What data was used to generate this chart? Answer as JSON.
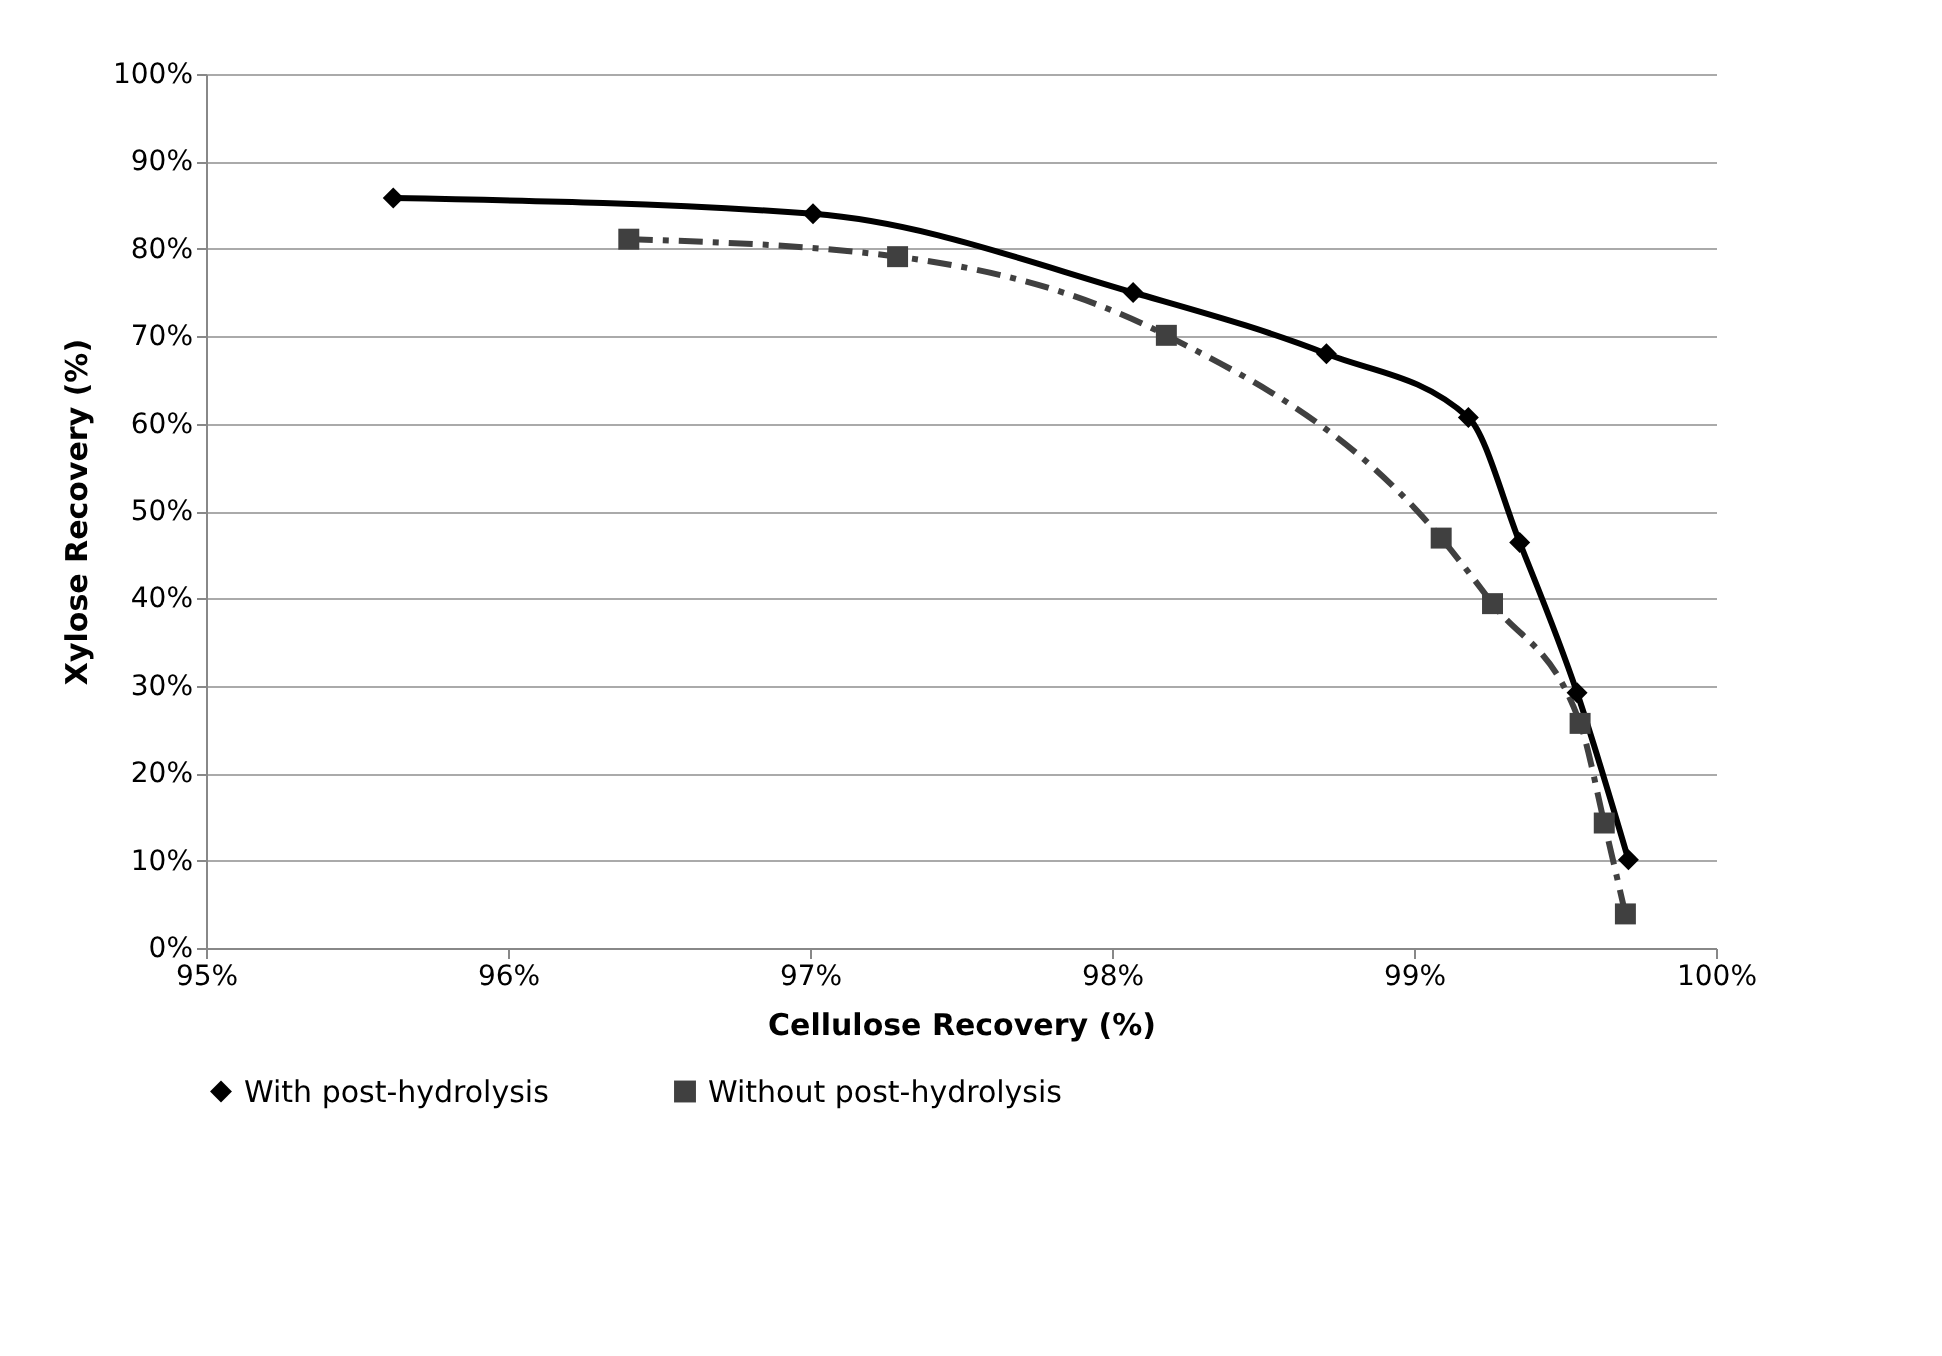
{
  "chart_data": {
    "type": "line",
    "xlabel": "Cellulose Recovery (%)",
    "ylabel": "Xylose Recovery (%)",
    "series": [
      {
        "name": "With post-hydrolysis",
        "color": "#000000",
        "marker": "diamond",
        "line_style": "solid",
        "x": [
          95.62,
          97.01,
          98.07,
          98.71,
          99.18,
          99.35,
          99.54,
          99.71
        ],
        "values": [
          85.8,
          84.0,
          75.0,
          68.0,
          60.7,
          46.4,
          29.2,
          10.1
        ]
      },
      {
        "name": "Without post-hydrolysis",
        "color": "#404040",
        "marker": "square",
        "line_style": "dashdot",
        "x": [
          96.4,
          97.29,
          98.18,
          99.09,
          99.26,
          99.55,
          99.63,
          99.7
        ],
        "values": [
          81.1,
          79.1,
          70.1,
          46.9,
          39.4,
          25.7,
          14.3,
          3.9
        ]
      }
    ],
    "xlim": [
      95,
      100
    ],
    "xticks": [
      {
        "value": 95,
        "label": "95%"
      },
      {
        "value": 96,
        "label": "96%"
      },
      {
        "value": 97,
        "label": "97%"
      },
      {
        "value": 98,
        "label": "98%"
      },
      {
        "value": 99,
        "label": "99%"
      },
      {
        "value": 100,
        "label": "100%"
      }
    ],
    "ylim": [
      0,
      100
    ],
    "yticks": [
      {
        "value": 0,
        "label": "0%"
      },
      {
        "value": 10,
        "label": "10%"
      },
      {
        "value": 20,
        "label": "20%"
      },
      {
        "value": 30,
        "label": "30%"
      },
      {
        "value": 40,
        "label": "40%"
      },
      {
        "value": 50,
        "label": "50%"
      },
      {
        "value": 60,
        "label": "60%"
      },
      {
        "value": 70,
        "label": "70%"
      },
      {
        "value": 80,
        "label": "80%"
      },
      {
        "value": 90,
        "label": "90%"
      },
      {
        "value": 100,
        "label": "100%"
      }
    ],
    "grid": "y",
    "legend": "bottom"
  }
}
